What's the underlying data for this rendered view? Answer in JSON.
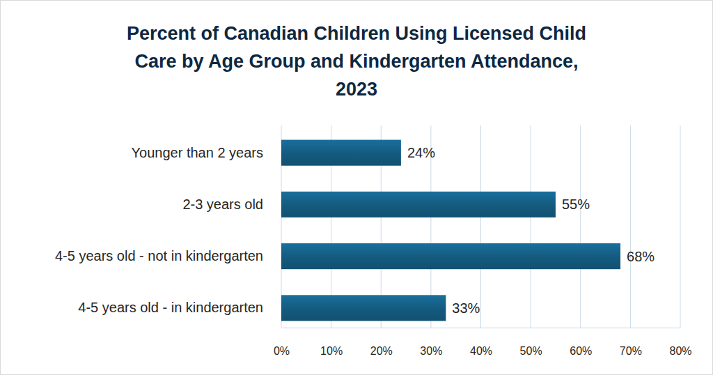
{
  "chart_data": {
    "type": "bar",
    "orientation": "horizontal",
    "title": "Percent of Canadian Children Using Licensed Child\nCare by Age Group and Kindergarten Attendance,\n2023",
    "categories": [
      "Younger than 2 years",
      "2-3 years old",
      "4-5 years old - not in kindergarten",
      "4-5 years old - in kindergarten"
    ],
    "values": [
      24,
      55,
      68,
      33
    ],
    "value_labels": [
      "24%",
      "55%",
      "68%",
      "33%"
    ],
    "color": "#145a7e",
    "xlim": [
      0,
      80
    ],
    "xticks": [
      {
        "value": 0,
        "label": "0%"
      },
      {
        "value": 10,
        "label": "10%"
      },
      {
        "value": 20,
        "label": "20%"
      },
      {
        "value": 30,
        "label": "30%"
      },
      {
        "value": 40,
        "label": "40%"
      },
      {
        "value": 50,
        "label": "50%"
      },
      {
        "value": 60,
        "label": "60%"
      },
      {
        "value": 70,
        "label": "70%"
      },
      {
        "value": 80,
        "label": "80%"
      }
    ],
    "grid": true,
    "data_labels": true
  }
}
